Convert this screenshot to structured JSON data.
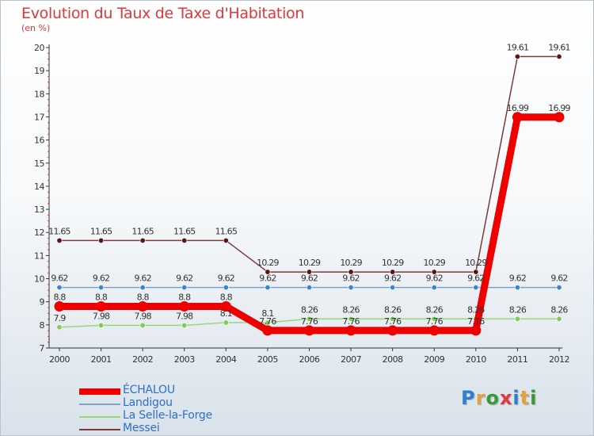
{
  "title": "Evolution du Taux de Taxe d'Habitation",
  "unit_label": "(en %)",
  "logo": {
    "text": "Proxiti",
    "colors": [
      "#2f7fd0",
      "#e6a13a",
      "#3a9a3a",
      "#e0373a",
      "#2f7fd0",
      "#e6a13a",
      "#3a9a3a"
    ]
  },
  "chart_data": {
    "type": "line",
    "title": "Evolution du Taux de Taxe d'Habitation",
    "ylabel": "(en %)",
    "xlabel": "",
    "x": [
      "2000",
      "2001",
      "2002",
      "2003",
      "2004",
      "2005",
      "2006",
      "2007",
      "2008",
      "2009",
      "2010",
      "2011",
      "2012"
    ],
    "ylim": [
      7,
      20
    ],
    "yticks": [
      "7",
      "8",
      "9",
      "10",
      "11",
      "12",
      "13",
      "14",
      "15",
      "16",
      "17",
      "18",
      "19",
      "20"
    ],
    "grid": false,
    "legend_position": "bottom-left",
    "series": [
      {
        "name": "ÉCHALOU",
        "color": "#ee0000",
        "style": "thick",
        "values": [
          8.8,
          8.8,
          8.8,
          8.8,
          8.8,
          7.76,
          7.76,
          7.76,
          7.76,
          7.76,
          7.76,
          16.99,
          16.99
        ],
        "labels": [
          "8.8",
          "8.8",
          "8.8",
          "8.8",
          "8.8",
          "7.76",
          "7.76",
          "7.76",
          "7.76",
          "7.76",
          "7.76",
          "16.99",
          "16.99"
        ]
      },
      {
        "name": "Landigou",
        "color": "#7fa3c6",
        "marker_color": "#3a86c8",
        "style": "thin",
        "values": [
          9.62,
          9.62,
          9.62,
          9.62,
          9.62,
          9.62,
          9.62,
          9.62,
          9.62,
          9.62,
          9.62,
          9.62,
          9.62
        ],
        "labels": [
          "9.62",
          "9.62",
          "9.62",
          "9.62",
          "9.62",
          "9.62",
          "9.62",
          "9.62",
          "9.62",
          "9.62",
          "9.62",
          "9.62",
          "9.62"
        ]
      },
      {
        "name": "La Selle-la-Forge",
        "color": "#98d680",
        "marker_color": "#7fcc55",
        "style": "thin",
        "values": [
          7.9,
          7.98,
          7.98,
          7.98,
          8.1,
          8.1,
          8.26,
          8.26,
          8.26,
          8.26,
          8.26,
          8.26,
          8.26
        ],
        "labels": [
          "7.9",
          "7.98",
          "7.98",
          "7.98",
          "8.1",
          "8.1",
          "8.26",
          "8.26",
          "8.26",
          "8.26",
          "8.26",
          "8.26",
          "8.26"
        ]
      },
      {
        "name": "Messei",
        "color": "#7a3a3a",
        "marker_color": "#5a1515",
        "style": "thin",
        "values": [
          11.65,
          11.65,
          11.65,
          11.65,
          11.65,
          10.29,
          10.29,
          10.29,
          10.29,
          10.29,
          10.29,
          19.61,
          19.61
        ],
        "labels": [
          "11.65",
          "11.65",
          "11.65",
          "11.65",
          "11.65",
          "10.29",
          "10.29",
          "10.29",
          "10.29",
          "10.29",
          "10.29",
          "19.61",
          "19.61"
        ]
      }
    ]
  }
}
